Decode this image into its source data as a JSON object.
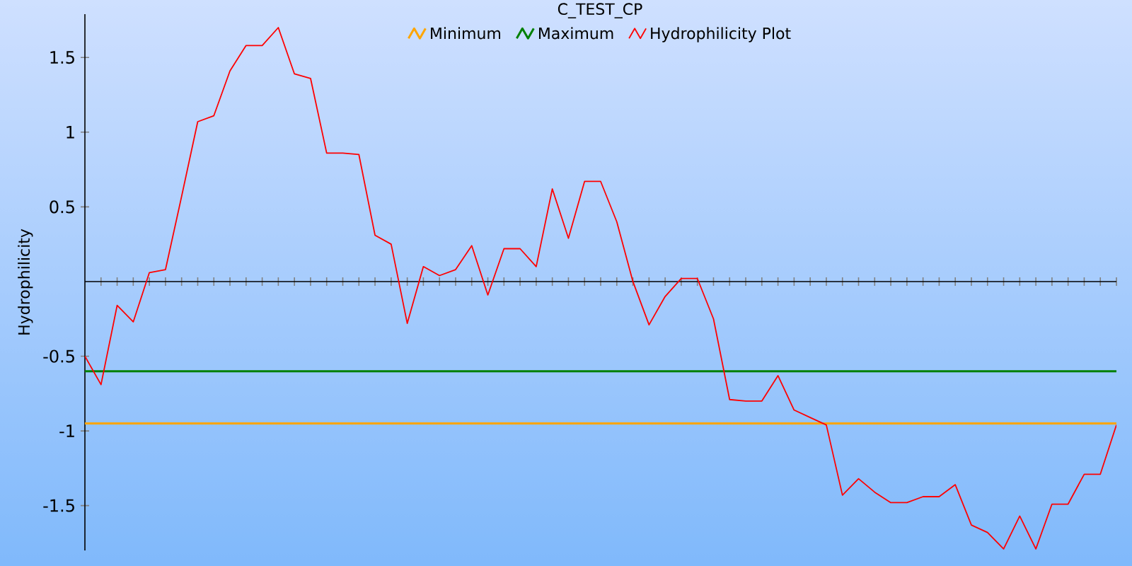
{
  "chart_data": {
    "type": "line",
    "title": "C_TEST_CP",
    "ylabel": "Hydrophilicity",
    "categories": [
      null,
      null,
      null,
      null,
      null,
      null,
      null,
      null,
      null,
      null,
      null,
      null,
      null,
      null,
      null,
      null,
      null,
      null,
      null,
      null,
      null,
      null,
      null,
      null,
      null,
      null,
      null,
      null,
      null,
      null,
      null,
      null,
      null,
      null,
      null,
      null,
      null,
      null,
      null,
      null,
      null,
      null,
      null,
      null,
      null,
      null,
      null,
      null,
      null,
      null,
      null,
      null,
      null,
      null,
      null,
      null,
      null,
      null,
      null,
      null,
      null,
      null,
      null,
      null,
      null
    ],
    "series": [
      {
        "name": "Hydrophilicity Plot",
        "color": "#ff0000",
        "values": [
          -0.5,
          -0.69,
          -0.16,
          -0.27,
          0.06,
          0.08,
          0.57,
          1.07,
          1.11,
          1.41,
          1.58,
          1.58,
          1.7,
          1.39,
          1.36,
          0.86,
          0.86,
          0.85,
          0.31,
          0.25,
          -0.28,
          0.1,
          0.04,
          0.08,
          0.24,
          -0.09,
          0.22,
          0.22,
          0.1,
          0.62,
          0.29,
          0.67,
          0.67,
          0.4,
          0.0,
          -0.29,
          -0.1,
          0.02,
          0.02,
          -0.25,
          -0.79,
          -0.8,
          -0.8,
          -0.63,
          -0.86,
          -0.91,
          -0.96,
          -1.43,
          -1.32,
          -1.41,
          -1.48,
          -1.48,
          -1.44,
          -1.44,
          -1.36,
          -1.63,
          -1.68,
          -1.79,
          -1.57,
          -1.79,
          -1.49,
          -1.49,
          -1.29,
          -1.29,
          -0.96
        ]
      }
    ],
    "ref_lines": [
      {
        "axis": "y",
        "value": -0.95,
        "label": "Minimum",
        "color": "#ffa500"
      },
      {
        "axis": "y",
        "value": -0.6,
        "label": "Maximum",
        "color": "#008000"
      }
    ],
    "ylim": [
      -1.8,
      1.79
    ],
    "yticks": [
      -1.5,
      -1,
      -0.5,
      0.5,
      1,
      1.5
    ],
    "tick_labels": "y",
    "legend": "top",
    "grid": false
  }
}
